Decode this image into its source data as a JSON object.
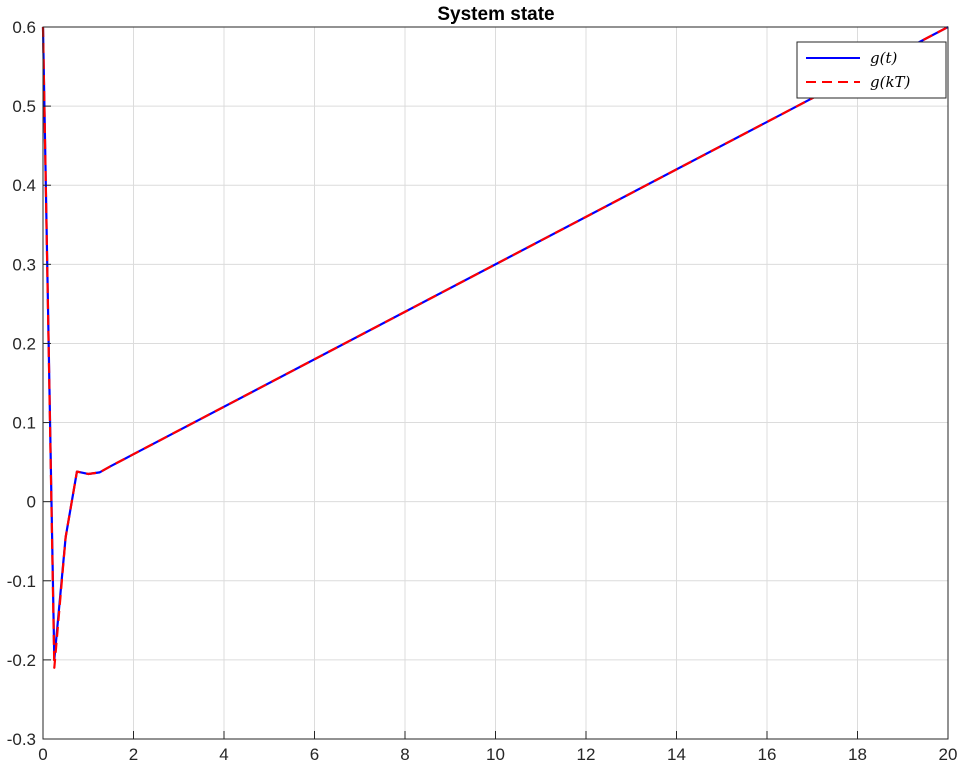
{
  "chart_data": {
    "type": "line",
    "title": "System state",
    "xlabel": "",
    "ylabel": "",
    "xlim": [
      0,
      20
    ],
    "ylim": [
      -0.3,
      0.6
    ],
    "grid": true,
    "legend_position": "top-right",
    "x_ticks": [
      "0",
      "2",
      "4",
      "6",
      "8",
      "10",
      "12",
      "14",
      "16",
      "18",
      "20"
    ],
    "y_ticks": [
      "-0.3",
      "-0.2",
      "-0.1",
      "0",
      "0.1",
      "0.2",
      "0.3",
      "0.4",
      "0.5",
      "0.6"
    ],
    "series": [
      {
        "name": "g(t)",
        "color": "#0000ff",
        "style": "solid",
        "points": [
          [
            0,
            0.6
          ],
          [
            0.25,
            -0.2
          ],
          [
            0.5,
            -0.045
          ],
          [
            0.75,
            0.038
          ],
          [
            1.0,
            0.035
          ],
          [
            1.25,
            0.037
          ],
          [
            1.5,
            0.045
          ],
          [
            2,
            0.06
          ],
          [
            20,
            0.6
          ]
        ]
      },
      {
        "name": "g(kT)",
        "color": "#ff0000",
        "style": "dashed",
        "points": [
          [
            0,
            0.6
          ],
          [
            0.25,
            -0.21
          ],
          [
            0.5,
            -0.045
          ],
          [
            0.75,
            0.038
          ],
          [
            1.0,
            0.035
          ],
          [
            1.25,
            0.037
          ],
          [
            1.5,
            0.045
          ],
          [
            2,
            0.06
          ],
          [
            20,
            0.6
          ]
        ]
      }
    ]
  }
}
